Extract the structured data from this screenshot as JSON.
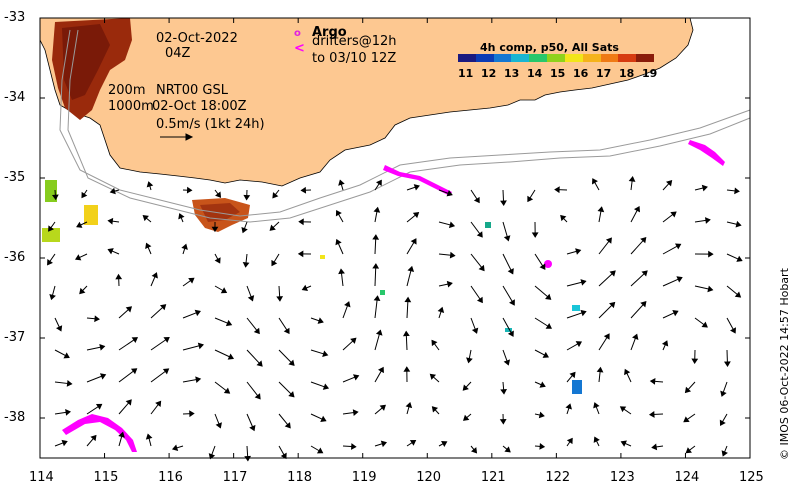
{
  "map": {
    "date": "02-Oct-2022",
    "time": "04Z",
    "depth_label": "200m",
    "depth_label2": "1000m",
    "product": "NRT00 GSL",
    "forecast": "02-Oct 18:00Z",
    "scale_label": "0.5m/s (1kt 24h)",
    "argo_symbol": "o",
    "argo_label": "Argo",
    "drifters_label": "drifters@12h",
    "drifters_symbol": "<",
    "drifters_to": "to 03/10 12Z",
    "composite_title": "4h comp, p50, All Sats",
    "colorbar_ticks": [
      "11",
      "12",
      "13",
      "14",
      "15",
      "16",
      "17",
      "18",
      "19"
    ],
    "lat_labels": [
      "-33",
      "-34",
      "-35",
      "-36",
      "-37",
      "-38"
    ],
    "lon_labels": [
      "114",
      "115",
      "116",
      "117",
      "118",
      "119",
      "120",
      "121",
      "122",
      "123",
      "124",
      "125"
    ],
    "credit": "© IMOS 06-Oct-2022 14:57 Hobart"
  },
  "colors": {
    "land": "#fdc891",
    "coast": "#000000",
    "argo": "#e020e0",
    "drifter": "#ff00ff",
    "colormap": [
      "#1a1a80",
      "#0b3bb5",
      "#1477d2",
      "#19b5d2",
      "#28c76b",
      "#8fd21c",
      "#f2e51a",
      "#f5b31b",
      "#ef7a15",
      "#d63b10",
      "#8a1c0a"
    ]
  }
}
